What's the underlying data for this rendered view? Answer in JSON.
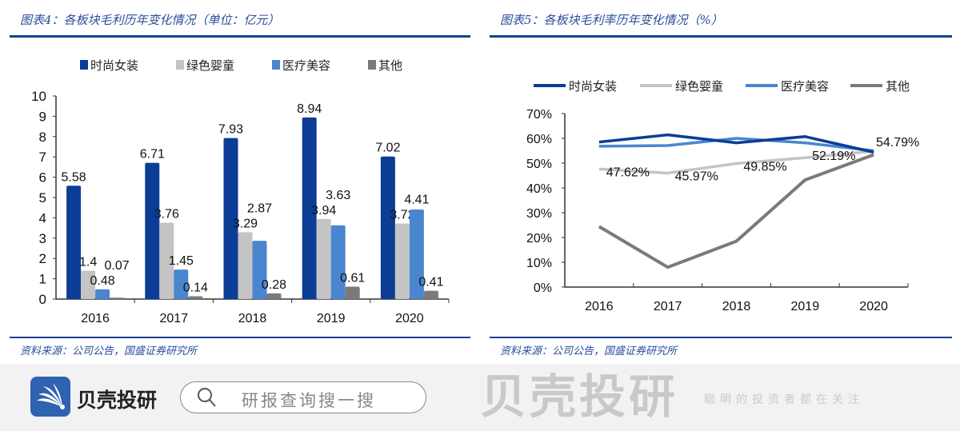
{
  "left_title": "图表4：各板块毛利历年变化情况（单位：亿元）",
  "right_title": "图表5：各板块毛利率历年变化情况（%）",
  "source_left": "资料来源：公司公告，国盛证券研究所",
  "source_right": "资料来源：公司公告，国盛证券研究所",
  "watermark": {
    "brand": "贝壳投研",
    "slogan": "聪明的投资者都在关注"
  },
  "bottom_bar": {
    "brand": "贝壳投研",
    "search_placeholder": "研报查询搜一搜",
    "logo_icon": "shell-logo-icon",
    "search_icon": "search-icon"
  },
  "colors": {
    "时尚女装": "#0b3d97",
    "绿色婴童": "#c4c4c4",
    "医疗美容": "#4a86cf",
    "其他": "#7a7a7a"
  },
  "chart_data": [
    {
      "type": "bar",
      "title": "图表4：各板块毛利历年变化情况（单位：亿元）",
      "categories": [
        "2016",
        "2017",
        "2018",
        "2019",
        "2020"
      ],
      "ylim": [
        0,
        10
      ],
      "yticks": [
        "0",
        "1",
        "2",
        "3",
        "4",
        "5",
        "6",
        "7",
        "8",
        "9",
        "10"
      ],
      "legend": "top",
      "series": [
        {
          "name": "时尚女装",
          "values": [
            5.58,
            6.71,
            7.93,
            8.94,
            7.02
          ],
          "labels": [
            "5.58",
            "6.71",
            "7.93",
            "8.94",
            "7.02"
          ]
        },
        {
          "name": "绿色婴童",
          "values": [
            1.4,
            3.76,
            3.29,
            3.94,
            3.72
          ],
          "labels": [
            "1.4",
            "3.76",
            "3.29",
            "3.94",
            "3.72"
          ]
        },
        {
          "name": "医疗美容",
          "values": [
            0.48,
            1.45,
            2.87,
            3.63,
            4.41
          ],
          "labels": [
            "0.48",
            "1.45",
            "2.87",
            "3.63",
            "4.41"
          ]
        },
        {
          "name": "其他",
          "values": [
            0.07,
            0.14,
            0.28,
            0.61,
            0.41
          ],
          "labels": [
            "0.07",
            "0.14",
            "0.28",
            "0.61",
            "0.41"
          ]
        }
      ]
    },
    {
      "type": "line",
      "title": "图表5：各板块毛利率历年变化情况（%）",
      "categories": [
        "2016",
        "2017",
        "2018",
        "2019",
        "2020"
      ],
      "ylim": [
        0,
        70
      ],
      "yticks": [
        "0%",
        "10%",
        "20%",
        "30%",
        "40%",
        "50%",
        "60%",
        "70%"
      ],
      "legend": "top",
      "series": [
        {
          "name": "时尚女装",
          "values": [
            58.5,
            61.4,
            58.2,
            60.7,
            54.4
          ],
          "labels": []
        },
        {
          "name": "绿色婴童",
          "values": [
            47.62,
            45.97,
            49.85,
            52.19,
            54.79
          ],
          "labels": [
            "47.62%",
            "45.97%",
            "49.85%",
            "52.19%",
            "54.79%"
          ]
        },
        {
          "name": "医疗美容",
          "values": [
            56.8,
            57.1,
            60.0,
            58.2,
            55.0
          ],
          "labels": []
        },
        {
          "name": "其他",
          "values": [
            24.4,
            8.0,
            18.5,
            43.2,
            53.4
          ],
          "labels": []
        }
      ]
    }
  ]
}
